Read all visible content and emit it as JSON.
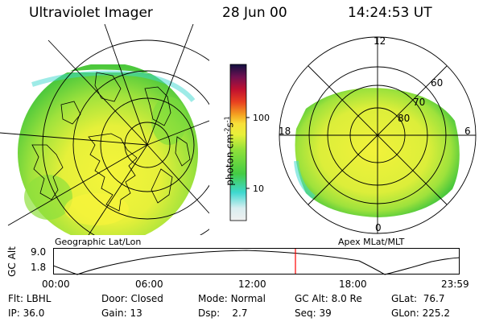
{
  "header": {
    "title": "Ultraviolet Imager",
    "date": "28 Jun 00",
    "time": "14:24:53 UT"
  },
  "geo_panel": {
    "label": "Geographic Lat/Lon"
  },
  "apex_panel": {
    "label": "Apex  MLat/MLT",
    "mlt_labels": {
      "top": "12",
      "left": "18",
      "right": "6",
      "bottom": "0"
    },
    "lat_labels": [
      "60",
      "70",
      "80"
    ]
  },
  "colorbar": {
    "unit_label": "photon cm",
    "unit_sup1": "-2",
    "unit_mid": "s",
    "unit_sup2": "-1",
    "ticks": [
      "100",
      "10"
    ]
  },
  "altitude_plot": {
    "ylabel": "GC Alt",
    "yticks": [
      "9.0",
      "1.8"
    ],
    "xticks": [
      "00:00",
      "06:00",
      "12:00",
      "18:00",
      "23:59"
    ],
    "current_time_marker": "14:24"
  },
  "info": {
    "row1": [
      {
        "label": "Flt:",
        "value": "LBHL"
      },
      {
        "label": "Door:",
        "value": "Closed"
      },
      {
        "label": "Mode:",
        "value": "Normal"
      },
      {
        "label": "GC Alt:",
        "value": "8.0 Re"
      },
      {
        "label": "GLat:",
        "value": "76.7"
      }
    ],
    "row2": [
      {
        "label": "IP:",
        "value": "36.0"
      },
      {
        "label": "Gain:",
        "value": "13"
      },
      {
        "label": "Dsp:",
        "value": "2.7"
      },
      {
        "label": "Seq:",
        "value": "39"
      },
      {
        "label": "GLon:",
        "value": "225.2"
      }
    ]
  },
  "colors": {
    "green": "#5ccf3a",
    "yellow": "#f2f23a",
    "lime": "#c8ee3a",
    "cyan": "#3ed8d0",
    "marker": "#ff0000"
  }
}
